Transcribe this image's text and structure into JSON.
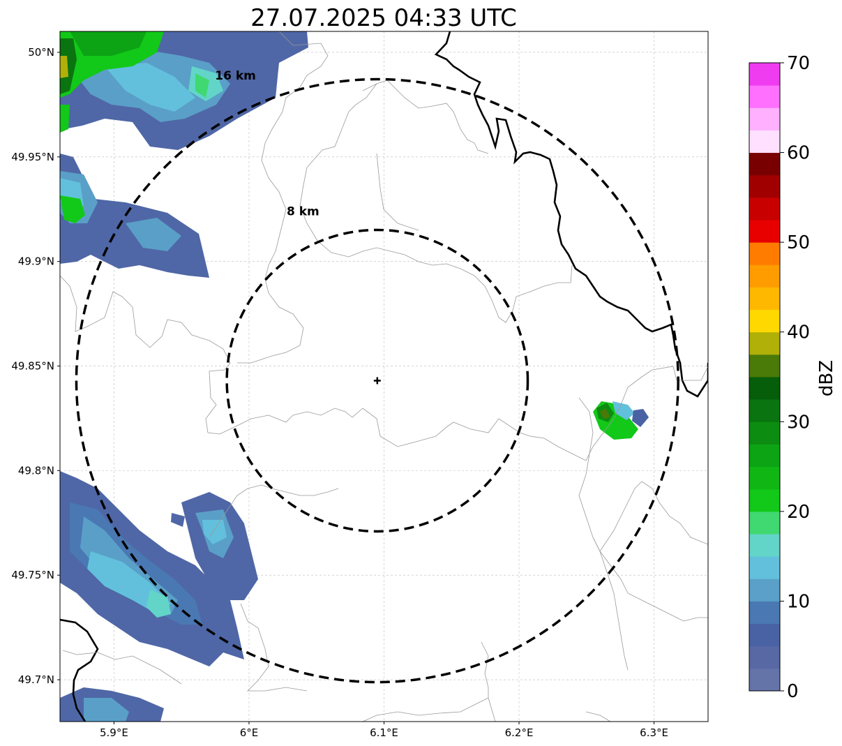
{
  "title": "27.07.2025 04:33 UTC",
  "map": {
    "lon_range": [
      5.86,
      6.34
    ],
    "lat_range": [
      49.68,
      50.01
    ],
    "grid": true,
    "lon_ticks": [
      {
        "value": 5.9,
        "label": "5.9°E"
      },
      {
        "value": 6.0,
        "label": "6°E"
      },
      {
        "value": 6.1,
        "label": "6.1°E"
      },
      {
        "value": 6.2,
        "label": "6.2°E"
      },
      {
        "value": 6.3,
        "label": "6.3°E"
      }
    ],
    "lat_ticks": [
      {
        "value": 50.0,
        "label": "50°N"
      },
      {
        "value": 49.95,
        "label": "49.95°N"
      },
      {
        "value": 49.9,
        "label": "49.9°N"
      },
      {
        "value": 49.85,
        "label": "49.85°N"
      },
      {
        "value": 49.8,
        "label": "49.8°N"
      },
      {
        "value": 49.75,
        "label": "49.75°N"
      },
      {
        "value": 49.7,
        "label": "49.7°N"
      }
    ],
    "center": {
      "lon": 6.095,
      "lat": 49.843
    },
    "range_rings": [
      {
        "radius_km": 8,
        "label": "8 km",
        "label_lon": 6.04,
        "label_lat": 49.922
      },
      {
        "radius_km": 16,
        "label": "16 km",
        "label_lon": 5.99,
        "label_lat": 49.987
      }
    ]
  },
  "colorbar": {
    "label": "dBZ",
    "min": 0,
    "max": 70,
    "step": 2.5,
    "ticks": [
      0,
      10,
      20,
      30,
      40,
      50,
      60,
      70
    ],
    "colors": [
      "#6473a8",
      "#5868a4",
      "#4962a4",
      "#4a78b2",
      "#5aa0c8",
      "#63c0dc",
      "#62d5c8",
      "#40d870",
      "#12c818",
      "#10b614",
      "#0ca414",
      "#0c8c10",
      "#0a7410",
      "#065e0a",
      "#4a7a08",
      "#b0b008",
      "#ffd800",
      "#ffb800",
      "#ff9c00",
      "#ff7c00",
      "#e80000",
      "#c80000",
      "#a00000",
      "#780000",
      "#ffe0ff",
      "#ffb0ff",
      "#ff70ff",
      "#f03cf0"
    ]
  }
}
